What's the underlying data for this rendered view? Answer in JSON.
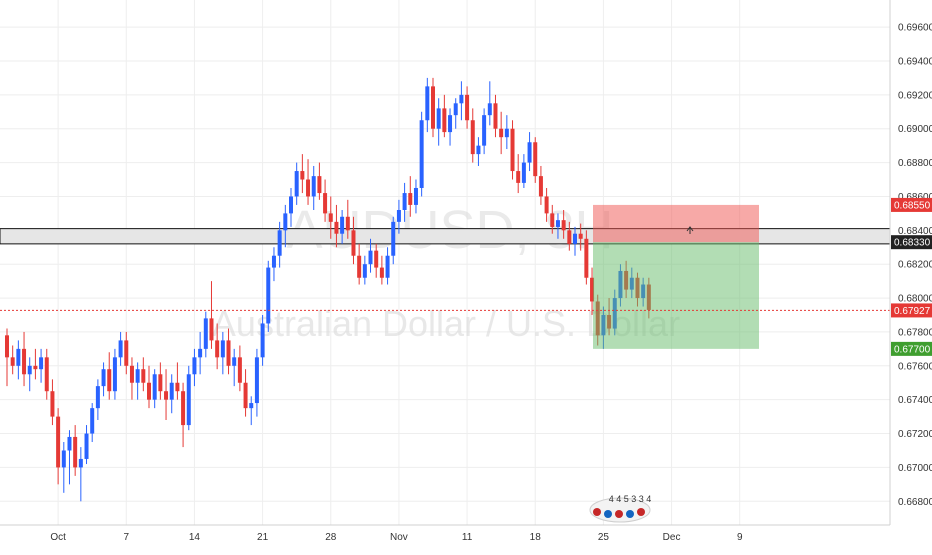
{
  "symbol_watermark": "AUDUSD, 8H",
  "description_watermark": "Australian Dollar / U.S. Dollar",
  "colors": {
    "up": "#2962ff",
    "down": "#e53935",
    "stop_zone": "#ef5350",
    "target_zone": "#66bb6a",
    "price_line": "#e53935",
    "grid": "#eeeeee"
  },
  "position": {
    "type": "short",
    "stop_loss": 0.6855,
    "entry": 0.6833,
    "target": 0.677,
    "stop_label": "0.68550",
    "entry_label": "0.68330",
    "target_label": "0.67700"
  },
  "current_price": {
    "value": 0.67927,
    "label": "0.67927"
  },
  "resistance_band": {
    "low": 0.6832,
    "high": 0.6841
  },
  "event_markers": "4  4 5 3 3 4",
  "chart_data": {
    "type": "candlestick",
    "title": "",
    "timeframe": "8H",
    "ylim": [
      0.6666,
      0.6976
    ],
    "y_ticks": [
      "0.69600",
      "0.69400",
      "0.69200",
      "0.69000",
      "0.68800",
      "0.68600",
      "0.68400",
      "0.68200",
      "0.68000",
      "0.67800",
      "0.67600",
      "0.67400",
      "0.67200",
      "0.67000",
      "0.66800"
    ],
    "y_tick_values": [
      0.696,
      0.694,
      0.692,
      0.69,
      0.688,
      0.686,
      0.684,
      0.682,
      0.68,
      0.678,
      0.676,
      0.674,
      0.672,
      0.67,
      0.668
    ],
    "x_ticks": [
      "Oct",
      "7",
      "14",
      "21",
      "28",
      "Nov",
      "11",
      "18",
      "25",
      "Dec",
      "9"
    ],
    "x_tick_index": [
      9,
      21,
      33,
      45,
      57,
      69,
      81,
      93,
      105,
      117,
      129
    ],
    "candles": [
      [
        0.6778,
        0.6782,
        0.6748,
        0.6765
      ],
      [
        0.6765,
        0.6772,
        0.6755,
        0.676
      ],
      [
        0.676,
        0.6775,
        0.6752,
        0.677
      ],
      [
        0.677,
        0.678,
        0.6748,
        0.6755
      ],
      [
        0.6755,
        0.6765,
        0.6745,
        0.676
      ],
      [
        0.676,
        0.677,
        0.6752,
        0.6758
      ],
      [
        0.6758,
        0.677,
        0.675,
        0.6765
      ],
      [
        0.6765,
        0.677,
        0.674,
        0.6745
      ],
      [
        0.6745,
        0.6752,
        0.6725,
        0.673
      ],
      [
        0.673,
        0.6735,
        0.669,
        0.67
      ],
      [
        0.67,
        0.6715,
        0.6685,
        0.671
      ],
      [
        0.671,
        0.6722,
        0.669,
        0.6718
      ],
      [
        0.6718,
        0.6725,
        0.6695,
        0.67
      ],
      [
        0.67,
        0.6712,
        0.668,
        0.6705
      ],
      [
        0.6705,
        0.6725,
        0.6702,
        0.672
      ],
      [
        0.672,
        0.6738,
        0.6715,
        0.6735
      ],
      [
        0.6735,
        0.6752,
        0.6728,
        0.6748
      ],
      [
        0.6748,
        0.6762,
        0.6742,
        0.6758
      ],
      [
        0.6758,
        0.6768,
        0.674,
        0.6745
      ],
      [
        0.6745,
        0.677,
        0.674,
        0.6765
      ],
      [
        0.6765,
        0.678,
        0.676,
        0.6775
      ],
      [
        0.6775,
        0.678,
        0.6755,
        0.676
      ],
      [
        0.676,
        0.6765,
        0.674,
        0.675
      ],
      [
        0.675,
        0.6762,
        0.674,
        0.6758
      ],
      [
        0.6758,
        0.6765,
        0.6745,
        0.675
      ],
      [
        0.675,
        0.676,
        0.6735,
        0.674
      ],
      [
        0.674,
        0.6758,
        0.6735,
        0.6755
      ],
      [
        0.6755,
        0.6762,
        0.674,
        0.6745
      ],
      [
        0.6745,
        0.6758,
        0.6728,
        0.674
      ],
      [
        0.674,
        0.6755,
        0.6732,
        0.675
      ],
      [
        0.675,
        0.6762,
        0.674,
        0.6745
      ],
      [
        0.6745,
        0.675,
        0.6712,
        0.6725
      ],
      [
        0.6725,
        0.676,
        0.6722,
        0.6755
      ],
      [
        0.6755,
        0.677,
        0.6748,
        0.6765
      ],
      [
        0.6765,
        0.678,
        0.6755,
        0.677
      ],
      [
        0.677,
        0.6792,
        0.6765,
        0.6788
      ],
      [
        0.6788,
        0.681,
        0.677,
        0.6775
      ],
      [
        0.6775,
        0.6785,
        0.6758,
        0.6765
      ],
      [
        0.6765,
        0.678,
        0.6755,
        0.6775
      ],
      [
        0.6775,
        0.6782,
        0.6755,
        0.676
      ],
      [
        0.676,
        0.677,
        0.6748,
        0.6765
      ],
      [
        0.6765,
        0.6772,
        0.6745,
        0.675
      ],
      [
        0.675,
        0.6758,
        0.673,
        0.6735
      ],
      [
        0.6735,
        0.6742,
        0.6725,
        0.6738
      ],
      [
        0.6738,
        0.677,
        0.673,
        0.6765
      ],
      [
        0.6765,
        0.679,
        0.676,
        0.6785
      ],
      [
        0.6785,
        0.6822,
        0.678,
        0.6818
      ],
      [
        0.6818,
        0.683,
        0.681,
        0.6825
      ],
      [
        0.6825,
        0.6845,
        0.6818,
        0.684
      ],
      [
        0.684,
        0.6855,
        0.683,
        0.685
      ],
      [
        0.685,
        0.6865,
        0.6842,
        0.686
      ],
      [
        0.686,
        0.688,
        0.6855,
        0.6875
      ],
      [
        0.6875,
        0.6885,
        0.6862,
        0.687
      ],
      [
        0.687,
        0.6882,
        0.6855,
        0.686
      ],
      [
        0.686,
        0.6878,
        0.6852,
        0.6872
      ],
      [
        0.6872,
        0.688,
        0.6858,
        0.6862
      ],
      [
        0.6862,
        0.687,
        0.6845,
        0.685
      ],
      [
        0.685,
        0.686,
        0.6835,
        0.6845
      ],
      [
        0.6845,
        0.6855,
        0.683,
        0.6838
      ],
      [
        0.6838,
        0.6852,
        0.6832,
        0.6848
      ],
      [
        0.6848,
        0.6858,
        0.6835,
        0.684
      ],
      [
        0.684,
        0.6848,
        0.682,
        0.6825
      ],
      [
        0.6825,
        0.6832,
        0.6808,
        0.6812
      ],
      [
        0.6812,
        0.6825,
        0.6808,
        0.682
      ],
      [
        0.682,
        0.6835,
        0.6815,
        0.6828
      ],
      [
        0.6828,
        0.6832,
        0.6812,
        0.6818
      ],
      [
        0.6818,
        0.6825,
        0.6808,
        0.6812
      ],
      [
        0.6812,
        0.683,
        0.6808,
        0.6825
      ],
      [
        0.6825,
        0.6848,
        0.682,
        0.6845
      ],
      [
        0.6845,
        0.6858,
        0.6838,
        0.6852
      ],
      [
        0.6852,
        0.6868,
        0.6845,
        0.6862
      ],
      [
        0.6862,
        0.6872,
        0.6848,
        0.6855
      ],
      [
        0.6855,
        0.687,
        0.685,
        0.6865
      ],
      [
        0.6865,
        0.691,
        0.686,
        0.6905
      ],
      [
        0.6905,
        0.693,
        0.6898,
        0.6925
      ],
      [
        0.6925,
        0.693,
        0.6895,
        0.69
      ],
      [
        0.69,
        0.6918,
        0.689,
        0.6912
      ],
      [
        0.6912,
        0.692,
        0.6895,
        0.6898
      ],
      [
        0.6898,
        0.6912,
        0.689,
        0.6908
      ],
      [
        0.6908,
        0.6918,
        0.69,
        0.6915
      ],
      [
        0.6915,
        0.6928,
        0.6905,
        0.692
      ],
      [
        0.692,
        0.6925,
        0.69,
        0.6905
      ],
      [
        0.6905,
        0.6912,
        0.688,
        0.6885
      ],
      [
        0.6885,
        0.6895,
        0.6878,
        0.689
      ],
      [
        0.689,
        0.6912,
        0.6885,
        0.6908
      ],
      [
        0.6908,
        0.6928,
        0.6902,
        0.6915
      ],
      [
        0.6915,
        0.692,
        0.6895,
        0.69
      ],
      [
        0.69,
        0.691,
        0.6885,
        0.6895
      ],
      [
        0.6895,
        0.6908,
        0.6888,
        0.69
      ],
      [
        0.69,
        0.6905,
        0.687,
        0.6875
      ],
      [
        0.6875,
        0.6885,
        0.6862,
        0.6868
      ],
      [
        0.6868,
        0.6885,
        0.6865,
        0.688
      ],
      [
        0.688,
        0.6898,
        0.6875,
        0.6892
      ],
      [
        0.6892,
        0.6895,
        0.6868,
        0.6872
      ],
      [
        0.6872,
        0.6878,
        0.6855,
        0.686
      ],
      [
        0.686,
        0.6865,
        0.6845,
        0.685
      ],
      [
        0.685,
        0.6855,
        0.6838,
        0.6842
      ],
      [
        0.6842,
        0.685,
        0.6835,
        0.6846
      ],
      [
        0.6846,
        0.6852,
        0.6835,
        0.684
      ],
      [
        0.684,
        0.6845,
        0.6828,
        0.6832
      ],
      [
        0.6832,
        0.6842,
        0.6825,
        0.6838
      ],
      [
        0.6838,
        0.6844,
        0.6828,
        0.6835
      ],
      [
        0.6835,
        0.684,
        0.6808,
        0.6812
      ],
      [
        0.6812,
        0.6818,
        0.679,
        0.6798
      ],
      [
        0.6798,
        0.6802,
        0.6772,
        0.6778
      ],
      [
        0.6778,
        0.6795,
        0.677,
        0.679
      ],
      [
        0.679,
        0.68,
        0.6778,
        0.6782
      ],
      [
        0.6782,
        0.6805,
        0.6778,
        0.68
      ],
      [
        0.68,
        0.682,
        0.6795,
        0.6816
      ],
      [
        0.6816,
        0.6822,
        0.68,
        0.6805
      ],
      [
        0.6805,
        0.6818,
        0.68,
        0.6812
      ],
      [
        0.6812,
        0.6815,
        0.6795,
        0.68
      ],
      [
        0.68,
        0.6812,
        0.6795,
        0.6808
      ],
      [
        0.6808,
        0.6812,
        0.6788,
        0.6793
      ]
    ]
  }
}
